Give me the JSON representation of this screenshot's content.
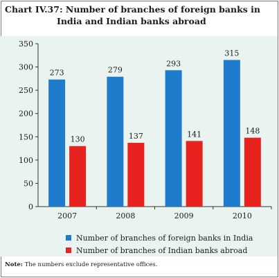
{
  "title_line1": "Chart IV.37: Number of branches of foreign banks in",
  "title_line2": "India and Indian banks abroad",
  "note_label": "Note:",
  "note_text": " The numbers exclude representative offices.",
  "colors": {
    "foreign": "#1f7ccc",
    "indian": "#e8221e",
    "background": "#e9f4f1"
  },
  "chart_data": {
    "type": "bar",
    "categories": [
      "2007",
      "2008",
      "2009",
      "2010"
    ],
    "series": [
      {
        "name": "Number of branches of foreign banks in India",
        "values": [
          273,
          279,
          293,
          315
        ]
      },
      {
        "name": "Number of branches of Indian banks abroad",
        "values": [
          130,
          137,
          141,
          148
        ]
      }
    ],
    "ylim": [
      0,
      350
    ],
    "yticks": [
      "0",
      "50",
      "100",
      "150",
      "200",
      "250",
      "300",
      "350"
    ],
    "grid": false,
    "legend": "bottom"
  }
}
